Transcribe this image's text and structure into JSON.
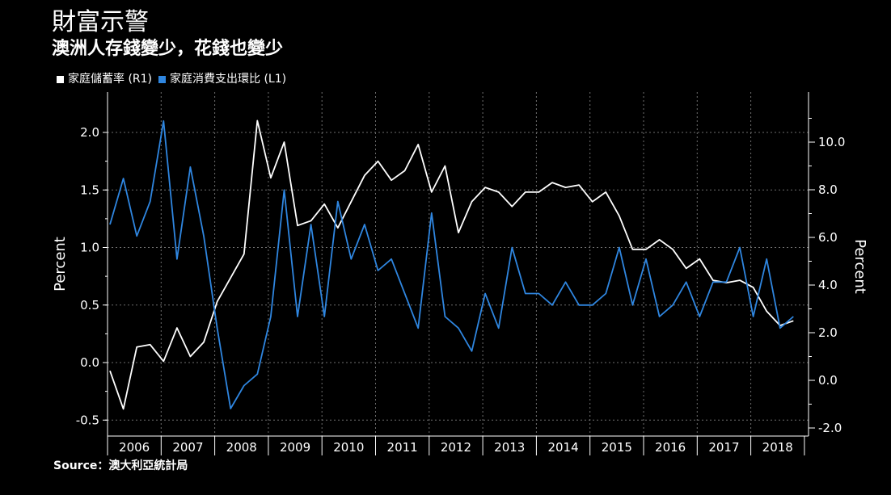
{
  "title": "財富示警",
  "subtitle": "澳洲人存錢變少，花錢也變少",
  "source": "Source：澳大利亞統計局",
  "legend": [
    {
      "label": "家庭儲蓄率 (R1)",
      "color": "#ffffff"
    },
    {
      "label": "家庭消費支出環比 (L1)",
      "color": "#2f86e0"
    }
  ],
  "chart_data": {
    "type": "line",
    "xlabel": "",
    "ylabel_left": "Percent",
    "ylabel_right": "Percent",
    "ylim_left": [
      -0.62,
      2.35
    ],
    "ylim_right": [
      -2.45,
      12.0
    ],
    "yticks_left": [
      "2.0",
      "1.5",
      "1.0",
      "0.5",
      "0.0",
      "-0.5"
    ],
    "yticks_left_values": [
      2.0,
      1.5,
      1.0,
      0.5,
      0.0,
      -0.5
    ],
    "yticks_right": [
      "10.0",
      "8.0",
      "6.0",
      "4.0",
      "2.0",
      "0.0",
      "-2.0"
    ],
    "yticks_right_values": [
      10.0,
      8.0,
      6.0,
      4.0,
      2.0,
      0.0,
      -2.0
    ],
    "years": [
      "2006",
      "2007",
      "2008",
      "2009",
      "2010",
      "2011",
      "2012",
      "2013",
      "2014",
      "2015",
      "2016",
      "2017",
      "2018"
    ],
    "grid": true,
    "legend_position": "top-left",
    "series": [
      {
        "name": "家庭儲蓄率 (R1)",
        "axis": "right",
        "color": "#ffffff",
        "x": [
          2006.0,
          2006.25,
          2006.5,
          2006.75,
          2007.0,
          2007.25,
          2007.5,
          2007.75,
          2008.0,
          2008.25,
          2008.5,
          2008.75,
          2009.0,
          2009.25,
          2009.5,
          2009.75,
          2010.0,
          2010.25,
          2010.5,
          2010.75,
          2011.0,
          2011.25,
          2011.5,
          2011.75,
          2012.0,
          2012.25,
          2012.5,
          2012.75,
          2013.0,
          2013.25,
          2013.5,
          2013.75,
          2014.0,
          2014.25,
          2014.5,
          2014.75,
          2015.0,
          2015.25,
          2015.5,
          2015.75,
          2016.0,
          2016.25,
          2016.5,
          2016.75,
          2017.0,
          2017.25,
          2017.5,
          2017.75,
          2018.0,
          2018.25,
          2018.5,
          2018.75
        ],
        "values": [
          0.4,
          -1.2,
          1.4,
          1.5,
          0.8,
          2.2,
          1.0,
          1.6,
          3.3,
          4.3,
          5.3,
          10.9,
          8.5,
          10.0,
          6.5,
          6.7,
          7.4,
          6.4,
          7.5,
          8.6,
          9.2,
          8.4,
          8.8,
          9.9,
          7.9,
          9.0,
          6.2,
          7.5,
          8.1,
          7.9,
          7.3,
          7.9,
          7.9,
          8.3,
          8.1,
          8.2,
          7.5,
          7.9,
          6.9,
          5.5,
          5.5,
          5.9,
          5.5,
          4.7,
          5.1,
          4.2,
          4.1,
          4.2,
          3.9,
          2.9,
          2.3,
          2.5
        ]
      },
      {
        "name": "家庭消費支出環比 (L1)",
        "axis": "left",
        "color": "#2f86e0",
        "x": [
          2006.0,
          2006.25,
          2006.5,
          2006.75,
          2007.0,
          2007.25,
          2007.5,
          2007.75,
          2008.0,
          2008.25,
          2008.5,
          2008.75,
          2009.0,
          2009.25,
          2009.5,
          2009.75,
          2010.0,
          2010.25,
          2010.5,
          2010.75,
          2011.0,
          2011.25,
          2011.5,
          2011.75,
          2012.0,
          2012.25,
          2012.5,
          2012.75,
          2013.0,
          2013.25,
          2013.5,
          2013.75,
          2014.0,
          2014.25,
          2014.5,
          2014.75,
          2015.0,
          2015.25,
          2015.5,
          2015.75,
          2016.0,
          2016.25,
          2016.5,
          2016.75,
          2017.0,
          2017.25,
          2017.5,
          2017.75,
          2018.0,
          2018.25,
          2018.5,
          2018.75
        ],
        "values": [
          1.2,
          1.6,
          1.1,
          1.4,
          2.1,
          0.9,
          1.7,
          1.1,
          0.3,
          -0.4,
          -0.2,
          -0.1,
          0.4,
          1.5,
          0.4,
          1.2,
          0.4,
          1.4,
          0.9,
          1.2,
          0.8,
          0.9,
          0.6,
          0.3,
          1.3,
          0.4,
          0.3,
          0.1,
          0.6,
          0.3,
          1.0,
          0.6,
          0.6,
          0.5,
          0.7,
          0.5,
          0.5,
          0.6,
          1.0,
          0.5,
          0.9,
          0.4,
          0.5,
          0.7,
          0.4,
          0.7,
          0.7,
          1.0,
          0.4,
          0.9,
          0.3,
          0.4
        ]
      }
    ]
  }
}
